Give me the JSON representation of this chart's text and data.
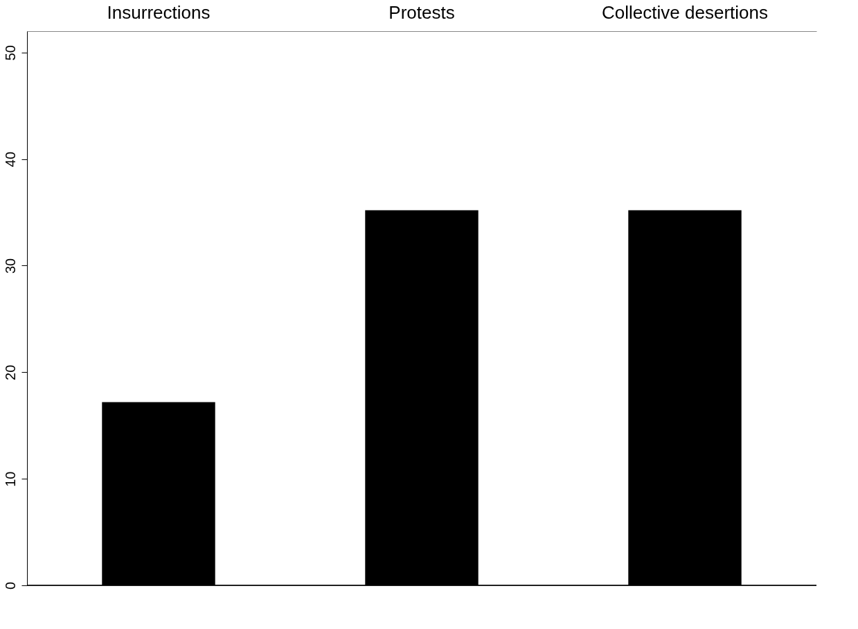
{
  "chart_data": {
    "type": "bar",
    "categories": [
      "Insurrections",
      "Protests",
      "Collective desertions"
    ],
    "values": [
      17.2,
      35.2,
      35.2
    ],
    "color": "#000000",
    "ylim": [
      0,
      52
    ],
    "yticks": [
      0,
      10,
      20,
      30,
      40,
      50
    ],
    "grid": false
  }
}
